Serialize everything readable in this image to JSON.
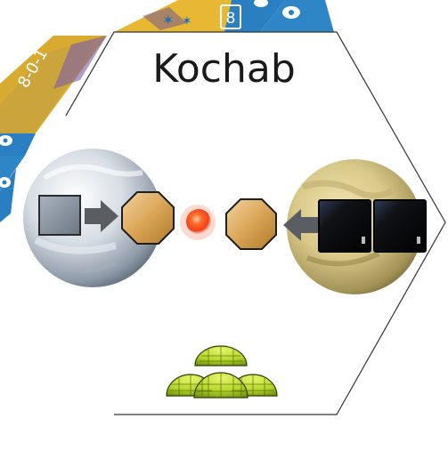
{
  "card": {
    "system_name": "Kochab",
    "corner_label": "8-0-1",
    "top_badge_number": "8"
  },
  "icons": {
    "left_planet": "ice-planet",
    "right_planet": "desert-planet",
    "left_input": "grey-cube-resource",
    "right_inputs": [
      "black-cube-resource",
      "black-cube-resource"
    ],
    "arrows": [
      "right-arrow",
      "left-arrow"
    ],
    "products": [
      "tan-octagon-resource",
      "tan-octagon-resource"
    ],
    "center": "red-energy-orb",
    "bottom": "green-dome-colonies"
  },
  "colors": {
    "background": "#ffffff",
    "border": "#333333",
    "gold_tile": "#e8b834",
    "blue_tile": "#2a7fc2",
    "octagon": "#d9a24e",
    "grey_cube": "#8f9aa6",
    "black_cube": "#141414",
    "orb": "#ff4a1c",
    "dome_green": "#b5d52a"
  }
}
